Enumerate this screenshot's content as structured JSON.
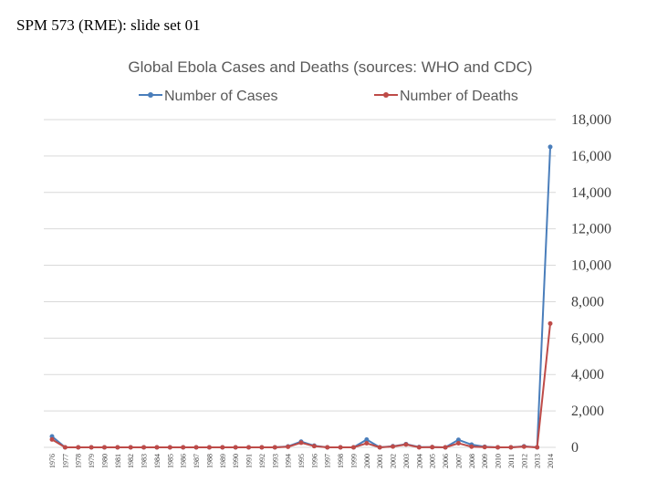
{
  "slide": {
    "title": "SPM 573 (RME): slide set 01"
  },
  "colors": {
    "cases": "#4a7ebb",
    "deaths": "#be4b48",
    "grid": "#d9d9d9"
  },
  "chart_data": {
    "type": "line",
    "title": "Global Ebola Cases and Deaths (sources: WHO and CDC)",
    "xlabel": "",
    "ylabel": "",
    "ylim": [
      0,
      18000
    ],
    "y_ticks": [
      0,
      2000,
      4000,
      6000,
      8000,
      10000,
      12000,
      14000,
      16000,
      18000
    ],
    "y_tick_labels": [
      "0",
      "2,000",
      "4,000",
      "6,000",
      "8,000",
      "10,000",
      "12,000",
      "14,000",
      "16,000",
      "18,000"
    ],
    "y_axis_side": "right",
    "legend_position": "top",
    "grid": true,
    "categories": [
      "1976",
      "1977",
      "1978",
      "1979",
      "1980",
      "1981",
      "1982",
      "1983",
      "1984",
      "1985",
      "1986",
      "1987",
      "1988",
      "1989",
      "1990",
      "1991",
      "1992",
      "1993",
      "1994",
      "1995",
      "1996",
      "1997",
      "1998",
      "1999",
      "2000",
      "2001",
      "2002",
      "2003",
      "2004",
      "2005",
      "2006",
      "2007",
      "2008",
      "2009",
      "2010",
      "2011",
      "2012",
      "2013",
      "2014"
    ],
    "series": [
      {
        "name": "Number of Cases",
        "color_key": "cases",
        "values": [
          602,
          1,
          0,
          0,
          0,
          0,
          0,
          0,
          0,
          0,
          0,
          0,
          0,
          0,
          0,
          0,
          0,
          0,
          52,
          315,
          91,
          0,
          0,
          0,
          425,
          0,
          60,
          178,
          17,
          12,
          0,
          413,
          149,
          32,
          0,
          1,
          57,
          0,
          16500
        ]
      },
      {
        "name": "Number of Deaths",
        "color_key": "deaths",
        "values": [
          431,
          1,
          0,
          0,
          0,
          0,
          0,
          0,
          0,
          0,
          0,
          0,
          0,
          0,
          0,
          0,
          0,
          0,
          31,
          254,
          66,
          0,
          0,
          0,
          224,
          0,
          44,
          157,
          0,
          10,
          0,
          224,
          37,
          15,
          0,
          1,
          36,
          0,
          6800
        ]
      }
    ]
  }
}
